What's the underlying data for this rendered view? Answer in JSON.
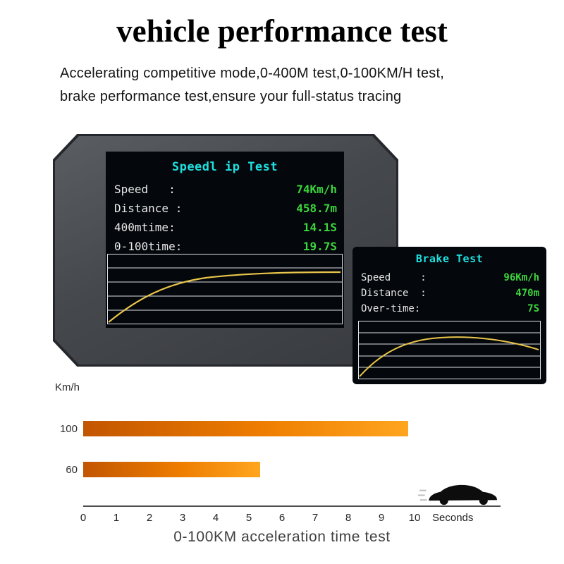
{
  "header": {
    "title": "vehicle performance test",
    "subtitle_line1": "Accelerating competitive mode,0-400M test,0-100KM/H test,",
    "subtitle_line2": "brake performance test,ensure your full-status tracing"
  },
  "speed_test": {
    "title": "Speedl ip Test",
    "rows": [
      {
        "label": "Speed   :",
        "value": "74Km/h"
      },
      {
        "label": "Distance :",
        "value": "458.7m"
      },
      {
        "label": "400mtime:",
        "value": "14.1S"
      },
      {
        "label": "0-100time:",
        "value": "19.7S"
      }
    ]
  },
  "brake_test": {
    "title": "Brake Test",
    "rows": [
      {
        "label": "Speed     :",
        "value": "96Km/h"
      },
      {
        "label": "Distance  :",
        "value": "470m"
      },
      {
        "label": "Over-time:",
        "value": "7S"
      }
    ]
  },
  "chart_data": {
    "type": "bar",
    "orientation": "horizontal",
    "title": "0-100KM acceleration time test",
    "unit_label": "Km/h",
    "xlabel": "Seconds",
    "categories": [
      "100",
      "60"
    ],
    "values": [
      9.8,
      5.35
    ],
    "x_ticks": [
      "0",
      "1",
      "2",
      "3",
      "4",
      "5",
      "6",
      "7",
      "8",
      "9",
      "10"
    ],
    "xlim": [
      0,
      10
    ],
    "bar_gradient": [
      "#c25500",
      "#ffa51e"
    ],
    "legend": "none",
    "grid": "off"
  },
  "colors": {
    "screen_title": "#1fe0e0",
    "screen_value": "#3cd43c",
    "curve": "#e8c54b",
    "device_body": "#45484c"
  }
}
